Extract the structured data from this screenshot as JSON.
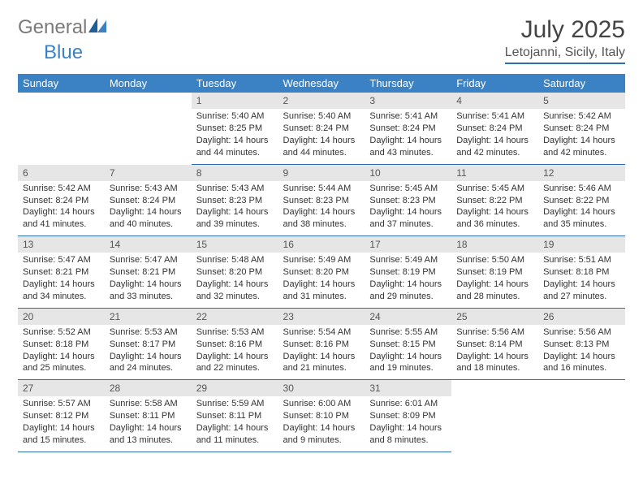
{
  "logo": {
    "general": "General",
    "blue": "Blue"
  },
  "title": "July 2025",
  "location": "Letojanni, Sicily, Italy",
  "colors": {
    "header_bg": "#3b82c4",
    "header_text": "#ffffff",
    "daynum_bg": "#e6e6e6",
    "border": "#2d6fa8",
    "logo_gray": "#7a7a7a",
    "logo_blue": "#3b82c4"
  },
  "weekdays": [
    "Sunday",
    "Monday",
    "Tuesday",
    "Wednesday",
    "Thursday",
    "Friday",
    "Saturday"
  ],
  "weeks": [
    [
      null,
      null,
      {
        "n": "1",
        "sr": "Sunrise: 5:40 AM",
        "ss": "Sunset: 8:25 PM",
        "d1": "Daylight: 14 hours",
        "d2": "and 44 minutes."
      },
      {
        "n": "2",
        "sr": "Sunrise: 5:40 AM",
        "ss": "Sunset: 8:24 PM",
        "d1": "Daylight: 14 hours",
        "d2": "and 44 minutes."
      },
      {
        "n": "3",
        "sr": "Sunrise: 5:41 AM",
        "ss": "Sunset: 8:24 PM",
        "d1": "Daylight: 14 hours",
        "d2": "and 43 minutes."
      },
      {
        "n": "4",
        "sr": "Sunrise: 5:41 AM",
        "ss": "Sunset: 8:24 PM",
        "d1": "Daylight: 14 hours",
        "d2": "and 42 minutes."
      },
      {
        "n": "5",
        "sr": "Sunrise: 5:42 AM",
        "ss": "Sunset: 8:24 PM",
        "d1": "Daylight: 14 hours",
        "d2": "and 42 minutes."
      }
    ],
    [
      {
        "n": "6",
        "sr": "Sunrise: 5:42 AM",
        "ss": "Sunset: 8:24 PM",
        "d1": "Daylight: 14 hours",
        "d2": "and 41 minutes."
      },
      {
        "n": "7",
        "sr": "Sunrise: 5:43 AM",
        "ss": "Sunset: 8:24 PM",
        "d1": "Daylight: 14 hours",
        "d2": "and 40 minutes."
      },
      {
        "n": "8",
        "sr": "Sunrise: 5:43 AM",
        "ss": "Sunset: 8:23 PM",
        "d1": "Daylight: 14 hours",
        "d2": "and 39 minutes."
      },
      {
        "n": "9",
        "sr": "Sunrise: 5:44 AM",
        "ss": "Sunset: 8:23 PM",
        "d1": "Daylight: 14 hours",
        "d2": "and 38 minutes."
      },
      {
        "n": "10",
        "sr": "Sunrise: 5:45 AM",
        "ss": "Sunset: 8:23 PM",
        "d1": "Daylight: 14 hours",
        "d2": "and 37 minutes."
      },
      {
        "n": "11",
        "sr": "Sunrise: 5:45 AM",
        "ss": "Sunset: 8:22 PM",
        "d1": "Daylight: 14 hours",
        "d2": "and 36 minutes."
      },
      {
        "n": "12",
        "sr": "Sunrise: 5:46 AM",
        "ss": "Sunset: 8:22 PM",
        "d1": "Daylight: 14 hours",
        "d2": "and 35 minutes."
      }
    ],
    [
      {
        "n": "13",
        "sr": "Sunrise: 5:47 AM",
        "ss": "Sunset: 8:21 PM",
        "d1": "Daylight: 14 hours",
        "d2": "and 34 minutes."
      },
      {
        "n": "14",
        "sr": "Sunrise: 5:47 AM",
        "ss": "Sunset: 8:21 PM",
        "d1": "Daylight: 14 hours",
        "d2": "and 33 minutes."
      },
      {
        "n": "15",
        "sr": "Sunrise: 5:48 AM",
        "ss": "Sunset: 8:20 PM",
        "d1": "Daylight: 14 hours",
        "d2": "and 32 minutes."
      },
      {
        "n": "16",
        "sr": "Sunrise: 5:49 AM",
        "ss": "Sunset: 8:20 PM",
        "d1": "Daylight: 14 hours",
        "d2": "and 31 minutes."
      },
      {
        "n": "17",
        "sr": "Sunrise: 5:49 AM",
        "ss": "Sunset: 8:19 PM",
        "d1": "Daylight: 14 hours",
        "d2": "and 29 minutes."
      },
      {
        "n": "18",
        "sr": "Sunrise: 5:50 AM",
        "ss": "Sunset: 8:19 PM",
        "d1": "Daylight: 14 hours",
        "d2": "and 28 minutes."
      },
      {
        "n": "19",
        "sr": "Sunrise: 5:51 AM",
        "ss": "Sunset: 8:18 PM",
        "d1": "Daylight: 14 hours",
        "d2": "and 27 minutes."
      }
    ],
    [
      {
        "n": "20",
        "sr": "Sunrise: 5:52 AM",
        "ss": "Sunset: 8:18 PM",
        "d1": "Daylight: 14 hours",
        "d2": "and 25 minutes."
      },
      {
        "n": "21",
        "sr": "Sunrise: 5:53 AM",
        "ss": "Sunset: 8:17 PM",
        "d1": "Daylight: 14 hours",
        "d2": "and 24 minutes."
      },
      {
        "n": "22",
        "sr": "Sunrise: 5:53 AM",
        "ss": "Sunset: 8:16 PM",
        "d1": "Daylight: 14 hours",
        "d2": "and 22 minutes."
      },
      {
        "n": "23",
        "sr": "Sunrise: 5:54 AM",
        "ss": "Sunset: 8:16 PM",
        "d1": "Daylight: 14 hours",
        "d2": "and 21 minutes."
      },
      {
        "n": "24",
        "sr": "Sunrise: 5:55 AM",
        "ss": "Sunset: 8:15 PM",
        "d1": "Daylight: 14 hours",
        "d2": "and 19 minutes."
      },
      {
        "n": "25",
        "sr": "Sunrise: 5:56 AM",
        "ss": "Sunset: 8:14 PM",
        "d1": "Daylight: 14 hours",
        "d2": "and 18 minutes."
      },
      {
        "n": "26",
        "sr": "Sunrise: 5:56 AM",
        "ss": "Sunset: 8:13 PM",
        "d1": "Daylight: 14 hours",
        "d2": "and 16 minutes."
      }
    ],
    [
      {
        "n": "27",
        "sr": "Sunrise: 5:57 AM",
        "ss": "Sunset: 8:12 PM",
        "d1": "Daylight: 14 hours",
        "d2": "and 15 minutes."
      },
      {
        "n": "28",
        "sr": "Sunrise: 5:58 AM",
        "ss": "Sunset: 8:11 PM",
        "d1": "Daylight: 14 hours",
        "d2": "and 13 minutes."
      },
      {
        "n": "29",
        "sr": "Sunrise: 5:59 AM",
        "ss": "Sunset: 8:11 PM",
        "d1": "Daylight: 14 hours",
        "d2": "and 11 minutes."
      },
      {
        "n": "30",
        "sr": "Sunrise: 6:00 AM",
        "ss": "Sunset: 8:10 PM",
        "d1": "Daylight: 14 hours",
        "d2": "and 9 minutes."
      },
      {
        "n": "31",
        "sr": "Sunrise: 6:01 AM",
        "ss": "Sunset: 8:09 PM",
        "d1": "Daylight: 14 hours",
        "d2": "and 8 minutes."
      },
      null,
      null
    ]
  ]
}
